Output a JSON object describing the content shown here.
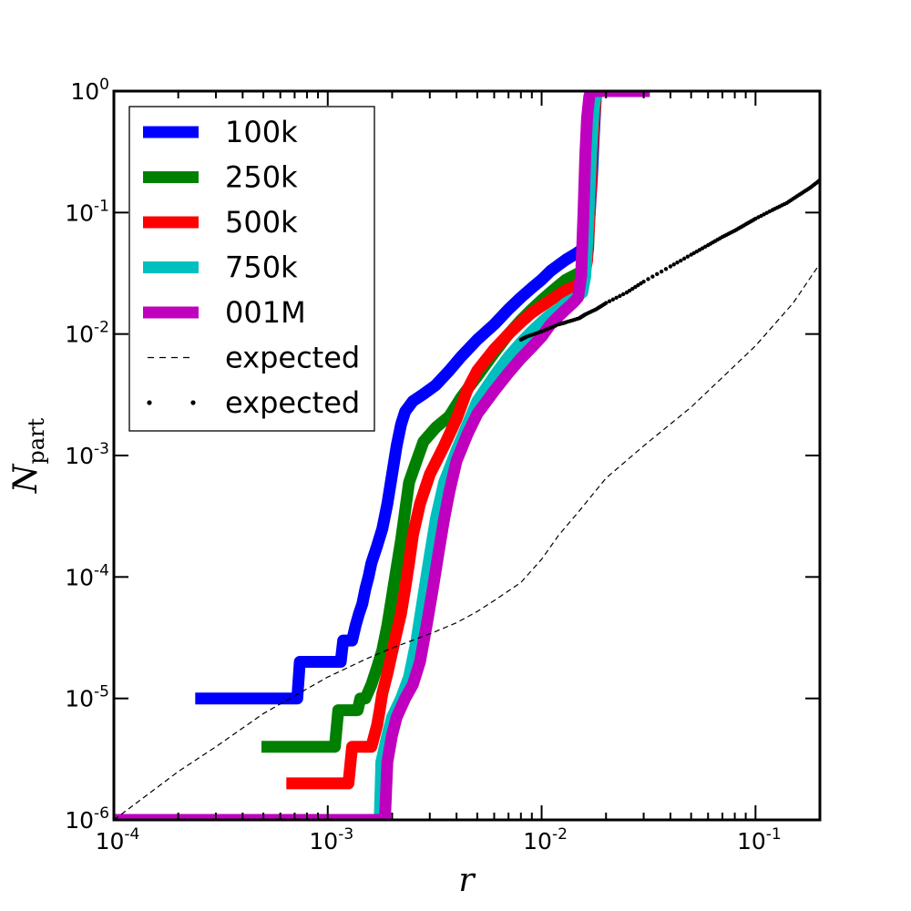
{
  "chart_data": {
    "type": "line",
    "xscale": "log",
    "yscale": "log",
    "xlim": [
      0.0001,
      0.2
    ],
    "ylim": [
      1e-06,
      1
    ],
    "xlabel": "r",
    "ylabel": "N",
    "ylabel_sub": "part",
    "legend_position": "upper-left",
    "x_ticks": [
      {
        "base": "10",
        "exp": "-4",
        "value": 0.0001
      },
      {
        "base": "10",
        "exp": "-3",
        "value": 0.001
      },
      {
        "base": "10",
        "exp": "-2",
        "value": 0.01
      },
      {
        "base": "10",
        "exp": "-1",
        "value": 0.1
      }
    ],
    "y_ticks": [
      {
        "base": "10",
        "exp": "-6",
        "value": 1e-06
      },
      {
        "base": "10",
        "exp": "-5",
        "value": 1e-05
      },
      {
        "base": "10",
        "exp": "-4",
        "value": 0.0001
      },
      {
        "base": "10",
        "exp": "-3",
        "value": 0.001
      },
      {
        "base": "10",
        "exp": "-2",
        "value": 0.01
      },
      {
        "base": "10",
        "exp": "-1",
        "value": 0.1
      },
      {
        "base": "10",
        "exp": "0",
        "value": 1
      }
    ],
    "series": [
      {
        "name": "100k",
        "color": "#0000ff",
        "style": "thick",
        "x": [
          0.00024,
          0.00072,
          0.00074,
          0.00115,
          0.00118,
          0.0013,
          0.00135,
          0.0014,
          0.00145,
          0.0015,
          0.00155,
          0.0016,
          0.0017,
          0.0018,
          0.0019,
          0.002,
          0.0021,
          0.0022,
          0.0023,
          0.0025,
          0.0028,
          0.0032,
          0.0037,
          0.0042,
          0.005,
          0.006,
          0.007,
          0.008,
          0.009,
          0.01,
          0.011,
          0.012,
          0.013,
          0.0145,
          0.016,
          0.0163,
          0.0168,
          0.0172,
          0.0175,
          0.0178,
          0.018,
          0.0185,
          0.032
        ],
        "y": [
          1e-05,
          1e-05,
          2e-05,
          2e-05,
          3e-05,
          3e-05,
          4e-05,
          5e-05,
          6e-05,
          8e-05,
          0.0001,
          0.00013,
          0.00018,
          0.00025,
          0.0004,
          0.0007,
          0.0012,
          0.0018,
          0.0023,
          0.0028,
          0.0032,
          0.0038,
          0.005,
          0.0065,
          0.009,
          0.012,
          0.016,
          0.02,
          0.024,
          0.028,
          0.033,
          0.037,
          0.041,
          0.046,
          0.052,
          0.06,
          0.1,
          0.2,
          0.4,
          0.7,
          1,
          1,
          1
        ]
      },
      {
        "name": "250k",
        "color": "#008000",
        "style": "thick",
        "x": [
          0.00049,
          0.00108,
          0.00112,
          0.00138,
          0.00142,
          0.0015,
          0.0016,
          0.0017,
          0.0018,
          0.0019,
          0.002,
          0.0021,
          0.0022,
          0.0023,
          0.0024,
          0.0026,
          0.0028,
          0.0032,
          0.0037,
          0.0042,
          0.005,
          0.006,
          0.007,
          0.008,
          0.009,
          0.01,
          0.011,
          0.012,
          0.013,
          0.0145,
          0.0155,
          0.016,
          0.0165,
          0.017,
          0.0175,
          0.018,
          0.032
        ],
        "y": [
          4e-06,
          4e-06,
          8e-06,
          8e-06,
          1e-05,
          1e-05,
          1.3e-05,
          1.8e-05,
          2.5e-05,
          4e-05,
          7e-05,
          0.00012,
          0.0002,
          0.00035,
          0.0006,
          0.0009,
          0.0013,
          0.0017,
          0.0021,
          0.003,
          0.0045,
          0.007,
          0.01,
          0.013,
          0.016,
          0.019,
          0.022,
          0.025,
          0.028,
          0.031,
          0.033,
          0.035,
          0.05,
          0.2,
          0.5,
          1,
          1
        ]
      },
      {
        "name": "500k",
        "color": "#ff0000",
        "style": "thick",
        "x": [
          0.00064,
          0.00125,
          0.0013,
          0.0016,
          0.0017,
          0.00175,
          0.0018,
          0.0019,
          0.002,
          0.0021,
          0.0022,
          0.0023,
          0.0024,
          0.0025,
          0.0027,
          0.003,
          0.0035,
          0.004,
          0.0045,
          0.005,
          0.006,
          0.007,
          0.008,
          0.009,
          0.01,
          0.011,
          0.012,
          0.013,
          0.0145,
          0.0152,
          0.0158,
          0.0163,
          0.0168,
          0.0172,
          0.0176,
          0.018,
          0.032
        ],
        "y": [
          2e-06,
          2e-06,
          4e-06,
          4e-06,
          6e-06,
          8e-06,
          1.1e-05,
          1.6e-05,
          2.4e-05,
          3.5e-05,
          5e-05,
          8e-05,
          0.00013,
          0.00022,
          0.0004,
          0.0007,
          0.0012,
          0.002,
          0.0035,
          0.005,
          0.0075,
          0.01,
          0.0125,
          0.015,
          0.017,
          0.019,
          0.021,
          0.023,
          0.025,
          0.027,
          0.03,
          0.04,
          0.1,
          0.3,
          0.6,
          1,
          1
        ]
      },
      {
        "name": "750k",
        "color": "#00bfbf",
        "style": "thick",
        "x": [
          0.0001,
          0.00175,
          0.00178,
          0.0019,
          0.002,
          0.0022,
          0.0024,
          0.0026,
          0.0028,
          0.003,
          0.0032,
          0.0035,
          0.004,
          0.0045,
          0.005,
          0.006,
          0.007,
          0.008,
          0.009,
          0.01,
          0.011,
          0.012,
          0.013,
          0.0145,
          0.0155,
          0.016,
          0.0165,
          0.017,
          0.0175,
          0.018,
          0.032
        ],
        "y": [
          1e-06,
          1e-06,
          3e-06,
          5e-06,
          7e-06,
          1e-05,
          1.5e-05,
          3e-05,
          7e-05,
          0.00015,
          0.0003,
          0.0006,
          0.0011,
          0.0018,
          0.0028,
          0.0045,
          0.0065,
          0.0085,
          0.0105,
          0.0125,
          0.0145,
          0.016,
          0.018,
          0.02,
          0.022,
          0.03,
          0.08,
          0.3,
          0.7,
          1,
          1
        ]
      },
      {
        "name": "001M",
        "color": "#bf00bf",
        "style": "thick",
        "x": [
          0.0001,
          0.00185,
          0.0019,
          0.002,
          0.0021,
          0.0023,
          0.0025,
          0.0027,
          0.0029,
          0.0031,
          0.0033,
          0.0035,
          0.0037,
          0.004,
          0.0045,
          0.005,
          0.006,
          0.007,
          0.008,
          0.009,
          0.01,
          0.011,
          0.012,
          0.013,
          0.014,
          0.0148,
          0.0153,
          0.0157,
          0.016,
          0.0163,
          0.0167,
          0.017,
          0.032
        ],
        "y": [
          1e-06,
          1e-06,
          3e-06,
          5e-06,
          7e-06,
          1e-05,
          1.3e-05,
          2e-05,
          4e-05,
          8e-05,
          0.00016,
          0.0003,
          0.0005,
          0.0009,
          0.0015,
          0.0022,
          0.0034,
          0.0048,
          0.0063,
          0.0078,
          0.0095,
          0.012,
          0.014,
          0.016,
          0.018,
          0.02,
          0.03,
          0.1,
          0.3,
          0.6,
          0.9,
          1,
          1
        ]
      },
      {
        "name": "expected",
        "color": "#000000",
        "style": "dashed",
        "x": [
          0.0001,
          0.0002,
          0.0003,
          0.0005,
          0.0008,
          0.001,
          0.0015,
          0.002,
          0.003,
          0.004,
          0.005,
          0.006,
          0.008,
          0.01,
          0.012,
          0.015,
          0.02,
          0.03,
          0.05,
          0.08,
          0.1,
          0.15,
          0.2
        ],
        "y": [
          1e-06,
          2.5e-06,
          4e-06,
          7.5e-06,
          1.2e-05,
          1.5e-05,
          2.1e-05,
          2.6e-05,
          3.4e-05,
          4.2e-05,
          5.2e-05,
          6.4e-05,
          9e-05,
          0.00014,
          0.00022,
          0.00035,
          0.00065,
          0.0012,
          0.0025,
          0.0055,
          0.008,
          0.018,
          0.038
        ]
      },
      {
        "name": "expected",
        "color": "#000000",
        "style": "dotted",
        "x": [
          0.008,
          0.0085,
          0.01,
          0.012,
          0.013,
          0.015,
          0.016,
          0.018,
          0.02,
          0.025,
          0.03,
          0.04,
          0.05,
          0.06,
          0.07,
          0.08,
          0.09,
          0.1,
          0.12,
          0.14,
          0.16,
          0.18,
          0.2
        ],
        "y": [
          0.009,
          0.0095,
          0.0105,
          0.012,
          0.0125,
          0.0135,
          0.0145,
          0.016,
          0.018,
          0.022,
          0.027,
          0.036,
          0.045,
          0.054,
          0.063,
          0.071,
          0.08,
          0.089,
          0.105,
          0.12,
          0.14,
          0.16,
          0.185
        ]
      }
    ]
  }
}
